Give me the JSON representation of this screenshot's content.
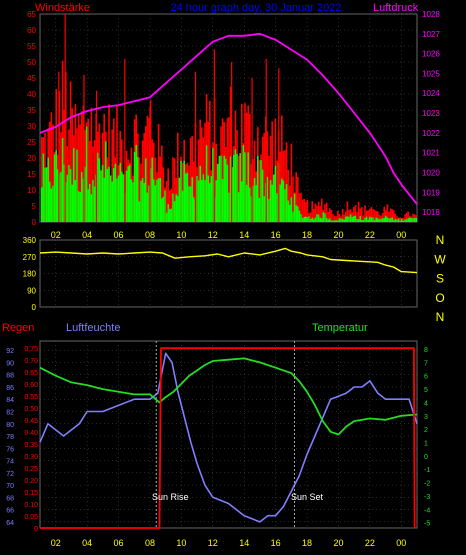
{
  "colors": {
    "background": "#000000",
    "wind_gust": "#ff0000",
    "wind_avg": "#00ff00",
    "pressure": "#ff00ff",
    "direction": "#ffff00",
    "rain": "#ff0000",
    "humidity": "#7f7fff",
    "temperature": "#22dd22",
    "axis_text_yellow": "#ffff00",
    "title": "#0000ff",
    "grid": "#555555"
  },
  "header": {
    "wind_label": "Windstärke",
    "title": "24 hour graph day, 30 Januar 2022",
    "pressure_label": "Luftdruck"
  },
  "lower_labels": {
    "rain": "Regen",
    "humidity": "Luftfeuchte",
    "temperature": "Temperatur",
    "sunrise": "Sun Rise",
    "sunset": "Sun Set"
  },
  "x_ticks": [
    "02",
    "04",
    "06",
    "08",
    "10",
    "12",
    "14",
    "16",
    "18",
    "20",
    "22",
    "00"
  ],
  "chart_data": [
    {
      "type": "bar",
      "name": "wind",
      "x_range": [
        1.0,
        25.0
      ],
      "ylim": [
        0,
        65
      ],
      "y_ticks": [
        0,
        5,
        10,
        15,
        20,
        25,
        30,
        35,
        40,
        45,
        50,
        55,
        60,
        65
      ],
      "gust_envelope_x": [
        1.0,
        1.5,
        2.0,
        2.5,
        3.0,
        3.5,
        4.0,
        4.5,
        5.0,
        5.5,
        6.0,
        6.5,
        7.0,
        7.5,
        8.0,
        8.5,
        9.0,
        9.5,
        10.0,
        10.5,
        11.0,
        11.5,
        12.0,
        12.5,
        13.0,
        13.5,
        14.0,
        14.5,
        15.0,
        15.5,
        16.0,
        16.5,
        17.0,
        17.5,
        18.0,
        18.5,
        19.0,
        19.5,
        20.0,
        20.5,
        21.0,
        21.5,
        22.0,
        22.5,
        23.0,
        23.5,
        24.0,
        24.5,
        25.0
      ],
      "gust_envelope_y": [
        28,
        30,
        38,
        46,
        35,
        34,
        42,
        32,
        36,
        31,
        30,
        28,
        33,
        27,
        40,
        26,
        18,
        20,
        30,
        26,
        32,
        35,
        33,
        30,
        38,
        34,
        36,
        31,
        33,
        30,
        31,
        27,
        22,
        8,
        6,
        5,
        8,
        4,
        3,
        6,
        7,
        4,
        6,
        3,
        5,
        3,
        2,
        3,
        2
      ],
      "gust_spikes_x": [
        2.2,
        2.6,
        3.8,
        4.6,
        6.4,
        8.0,
        10.9,
        12.1,
        13.2,
        14.5,
        15.4,
        16.2
      ],
      "gust_spikes_y": [
        47,
        68,
        46,
        41,
        51,
        36,
        47,
        54,
        50,
        45,
        51,
        48
      ],
      "avg_envelope_y": [
        18,
        20,
        22,
        26,
        22,
        22,
        28,
        20,
        24,
        19,
        18,
        16,
        22,
        15,
        24,
        15,
        8,
        10,
        18,
        14,
        20,
        22,
        21,
        18,
        22,
        20,
        24,
        18,
        20,
        16,
        18,
        14,
        10,
        3,
        2,
        2,
        3,
        1,
        1,
        2,
        3,
        1,
        2,
        1,
        2,
        1,
        1,
        2,
        1
      ]
    },
    {
      "type": "line",
      "name": "pressure",
      "ylabel": "Luftdruck",
      "ylim": [
        1017.5,
        1028.0
      ],
      "y_ticks": [
        1018,
        1019,
        1020,
        1021,
        1022,
        1023,
        1024,
        1025,
        1026,
        1027,
        1028
      ],
      "x": [
        1.0,
        2.0,
        3.0,
        4.0,
        5.0,
        6.0,
        7.0,
        8.0,
        9.0,
        10.0,
        11.0,
        12.0,
        13.0,
        14.0,
        15.0,
        16.0,
        17.0,
        18.0,
        19.0,
        20.0,
        21.0,
        22.0,
        23.0,
        23.5,
        24.0,
        24.5,
        25.0
      ],
      "y": [
        1022.0,
        1022.3,
        1022.8,
        1023.1,
        1023.3,
        1023.4,
        1023.6,
        1023.8,
        1024.5,
        1025.2,
        1025.9,
        1026.6,
        1026.9,
        1026.9,
        1027.0,
        1026.7,
        1026.2,
        1025.7,
        1024.9,
        1024.0,
        1023.0,
        1022.0,
        1020.8,
        1020.0,
        1019.4,
        1018.9,
        1018.4
      ]
    },
    {
      "type": "line",
      "name": "wind direction",
      "ylim": [
        0,
        360
      ],
      "y_ticks": [
        0,
        90,
        180,
        270,
        360
      ],
      "compass_labels": [
        "N",
        "W",
        "S",
        "O",
        "N"
      ],
      "x": [
        1.0,
        2.0,
        3.0,
        4.0,
        5.0,
        6.0,
        7.0,
        8.0,
        8.8,
        9.6,
        10.5,
        11.5,
        12.3,
        13.0,
        14.0,
        15.0,
        16.0,
        16.6,
        17.0,
        17.6,
        18.0,
        19.0,
        19.5,
        20.5,
        21.5,
        22.5,
        23.0,
        23.5,
        24.0,
        25.0
      ],
      "y": [
        290,
        295,
        290,
        285,
        290,
        285,
        290,
        295,
        290,
        262,
        270,
        275,
        285,
        270,
        290,
        280,
        300,
        315,
        300,
        290,
        280,
        270,
        255,
        250,
        245,
        240,
        225,
        215,
        190,
        185
      ]
    },
    {
      "type": "line",
      "name": "Luftfeuchte",
      "ylim": [
        63,
        93.5
      ],
      "y_ticks": [
        64,
        66,
        68,
        70,
        72,
        74,
        76,
        78,
        80,
        82,
        84,
        86,
        88,
        90,
        92
      ],
      "x": [
        1.0,
        1.5,
        2.0,
        2.5,
        3.0,
        3.5,
        4.0,
        5.0,
        6.0,
        7.0,
        8.0,
        8.5,
        9.0,
        9.4,
        9.8,
        10.2,
        10.6,
        11.0,
        11.5,
        12.0,
        12.5,
        13.0,
        13.5,
        14.0,
        14.5,
        15.0,
        15.5,
        16.0,
        16.5,
        17.0,
        17.5,
        18.0,
        18.5,
        19.0,
        19.5,
        20.0,
        20.5,
        21.0,
        21.5,
        22.0,
        22.5,
        23.0,
        23.5,
        24.0,
        24.5,
        25.0
      ],
      "y": [
        77,
        80,
        79,
        78,
        79,
        80,
        82,
        82,
        83,
        84,
        84,
        85,
        91.5,
        90,
        85,
        81,
        77,
        73.5,
        70,
        68,
        67.5,
        67,
        66,
        65,
        64.5,
        64,
        65,
        65,
        66.5,
        69,
        71.5,
        75,
        78,
        81,
        84,
        84.5,
        85,
        86,
        86,
        87,
        85,
        84,
        84,
        84,
        84,
        80
      ]
    },
    {
      "type": "line",
      "name": "Temperatur",
      "ylim": [
        -5.4,
        8.6
      ],
      "y_ticks": [
        -5,
        -4,
        -3,
        -2,
        -1,
        0,
        1,
        2,
        3,
        4,
        5,
        6,
        7,
        8
      ],
      "x": [
        1.0,
        2.0,
        3.0,
        4.0,
        5.0,
        6.0,
        7.0,
        8.0,
        8.6,
        9.0,
        9.5,
        10.0,
        10.5,
        11.0,
        11.5,
        12.0,
        13.0,
        14.0,
        15.0,
        16.0,
        17.0,
        17.5,
        18.0,
        18.5,
        19.0,
        19.5,
        20.0,
        20.5,
        21.0,
        22.0,
        23.0,
        24.0,
        25.0
      ],
      "y": [
        6.6,
        6.0,
        5.5,
        5.3,
        5.0,
        4.8,
        4.6,
        4.6,
        4.0,
        4.4,
        4.8,
        5.4,
        6.0,
        6.4,
        6.8,
        7.1,
        7.2,
        7.3,
        7.0,
        6.6,
        6.2,
        5.6,
        4.8,
        3.8,
        2.6,
        1.8,
        1.6,
        2.2,
        2.6,
        2.8,
        2.7,
        3.0,
        3.1
      ]
    },
    {
      "type": "line",
      "name": "Regen",
      "ylim": [
        0,
        0.78
      ],
      "y_ticks": [
        0,
        0.05,
        0.1,
        0.15,
        0.2,
        0.25,
        0.3,
        0.35,
        0.4,
        0.45,
        0.5,
        0.55,
        0.6,
        0.65,
        0.7,
        0.75
      ],
      "x": [
        1.0,
        8.6,
        8.7,
        24.8,
        24.85
      ],
      "y": [
        0,
        0,
        0.75,
        0.75,
        0
      ]
    }
  ]
}
